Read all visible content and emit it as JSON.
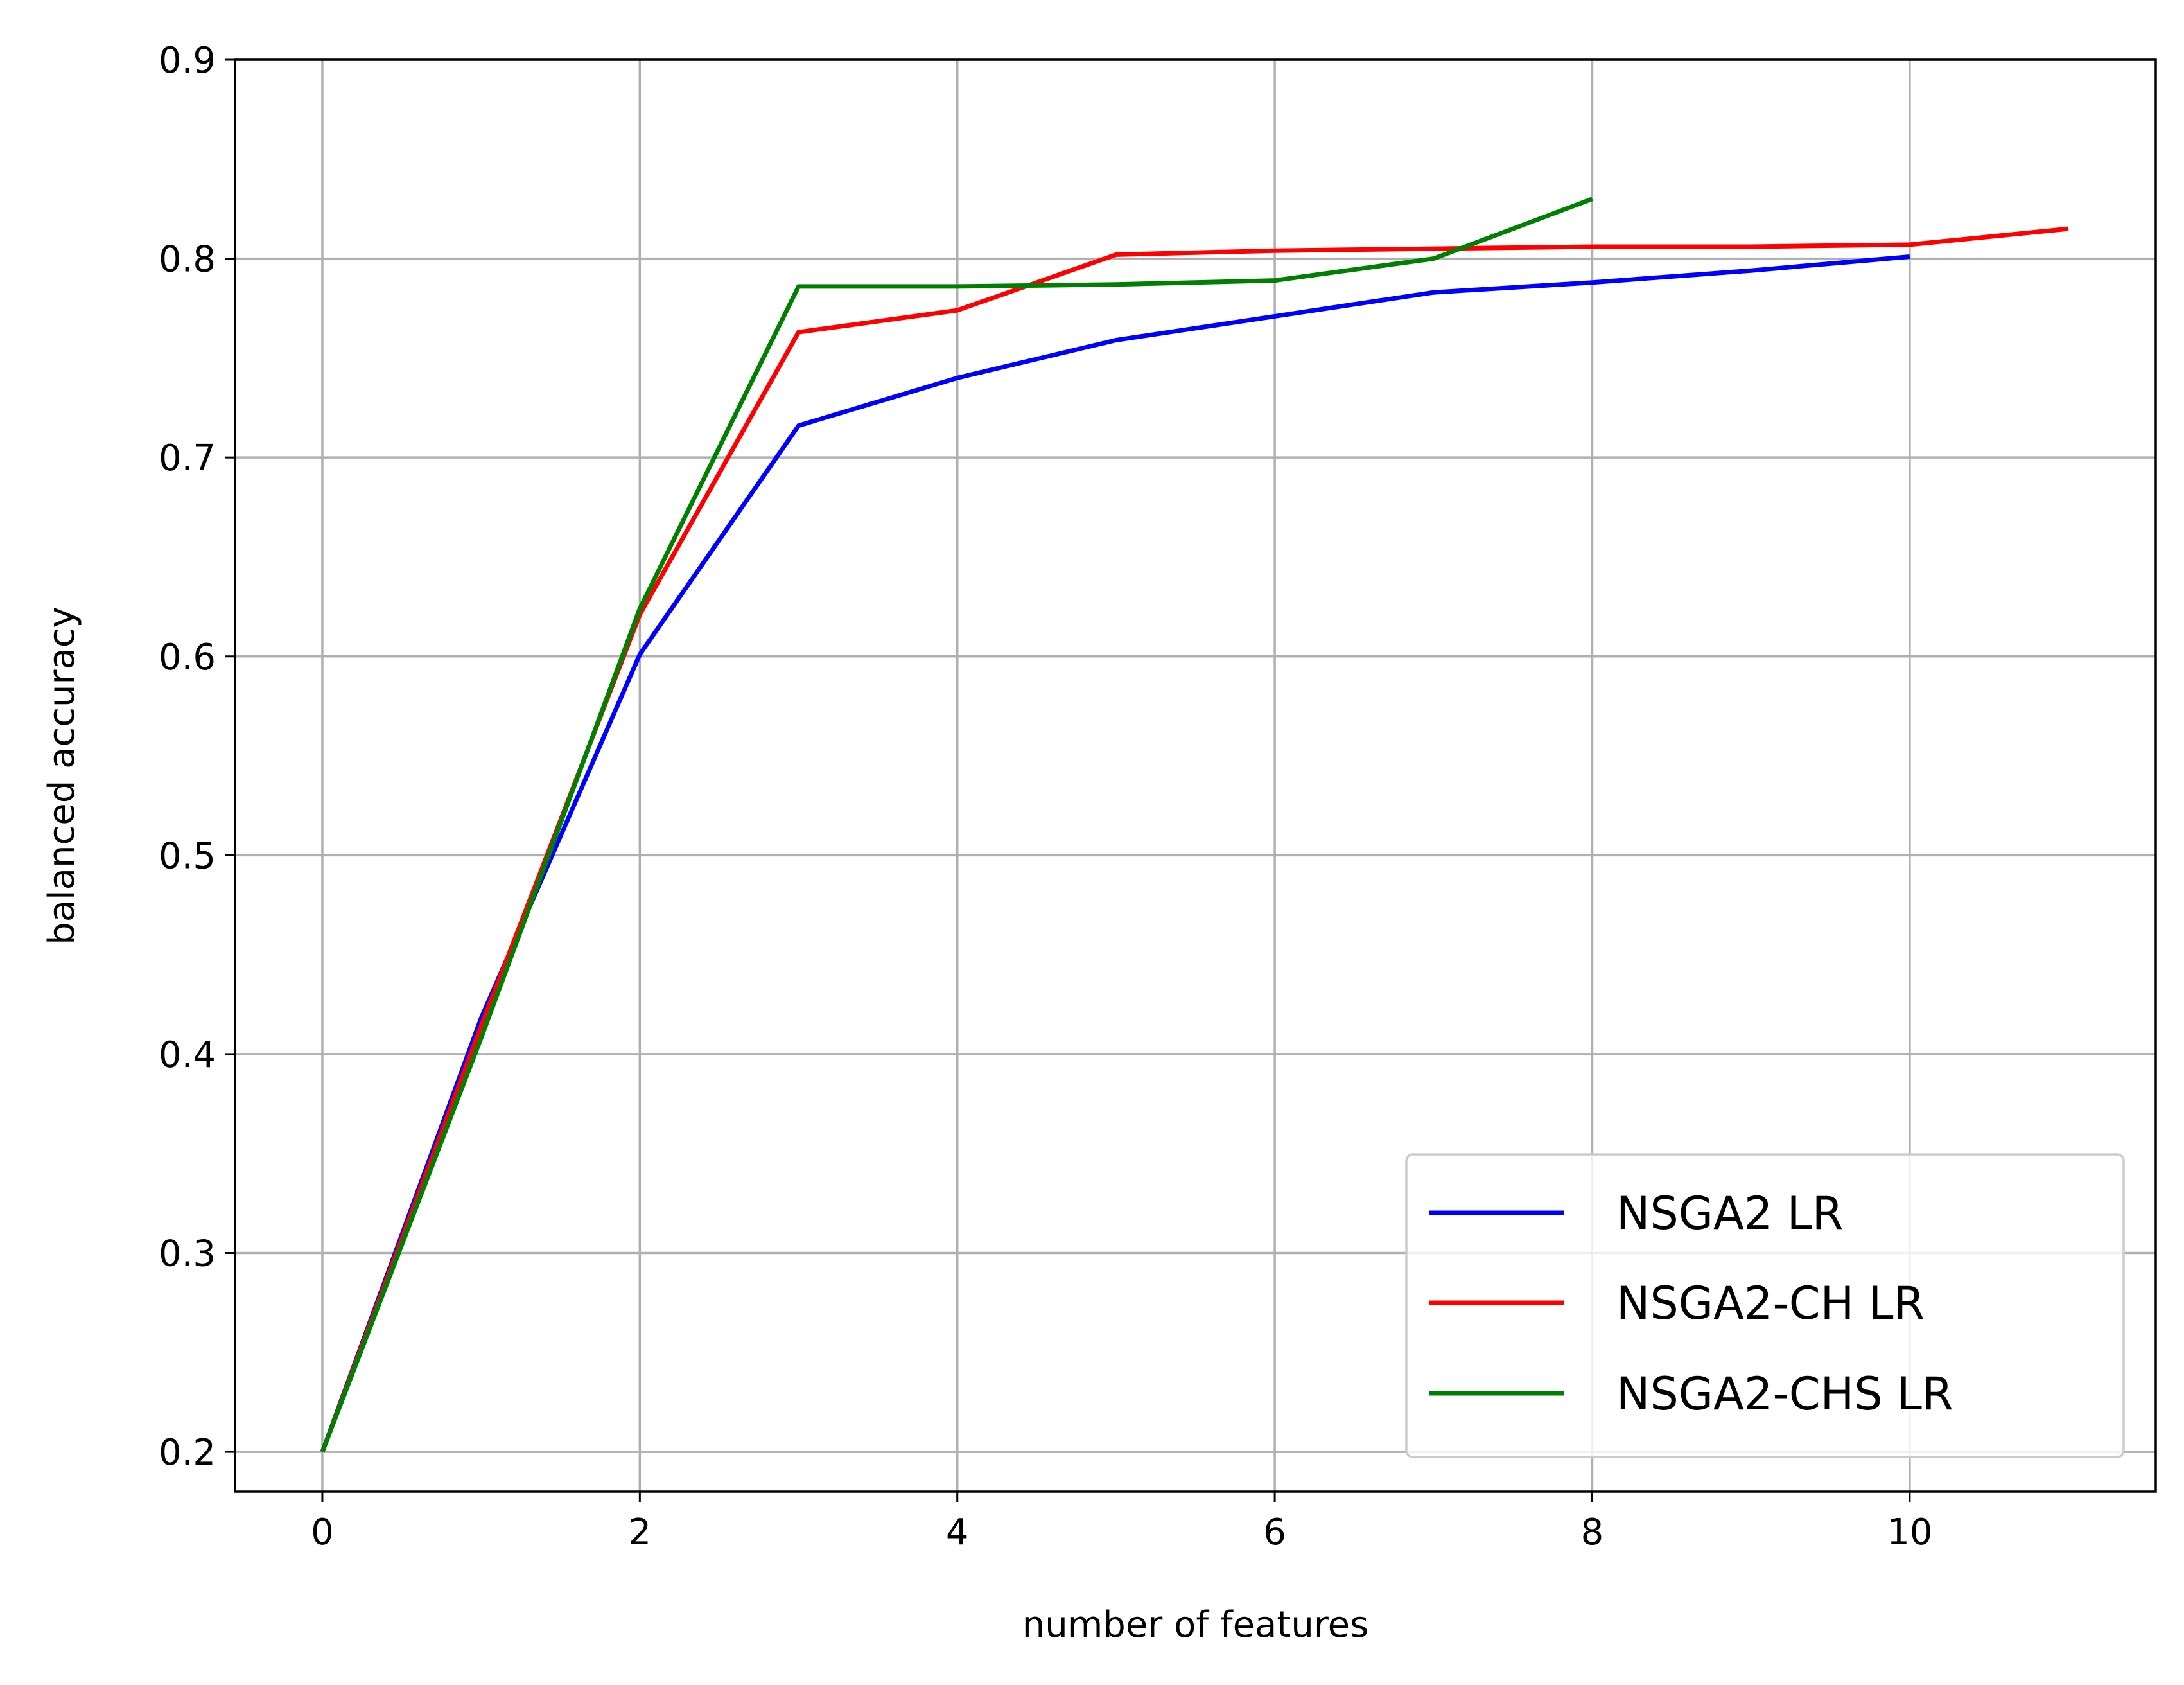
{
  "chart_data": {
    "type": "line",
    "title": "",
    "xlabel": "number of features",
    "ylabel": "balanced accuracy",
    "xlim": [
      -0.55,
      11.55
    ],
    "ylim": [
      0.18,
      0.9
    ],
    "xticks": [
      0,
      2,
      4,
      6,
      8,
      10
    ],
    "xtick_labels": [
      "0",
      "2",
      "4",
      "6",
      "8",
      "10"
    ],
    "yticks": [
      0.2,
      0.3,
      0.4,
      0.5,
      0.6,
      0.7,
      0.8,
      0.9
    ],
    "ytick_labels": [
      "0.2",
      "0.3",
      "0.4",
      "0.5",
      "0.6",
      "0.7",
      "0.8",
      "0.9"
    ],
    "grid": true,
    "legend_position": "bottom-right",
    "series": [
      {
        "name": "NSGA2 LR",
        "color": "#0000ff",
        "x": [
          0,
          1,
          2,
          3,
          4,
          5,
          6,
          7,
          8,
          9,
          10
        ],
        "y": [
          0.2,
          0.418,
          0.601,
          0.716,
          0.74,
          0.759,
          0.771,
          0.783,
          0.788,
          0.794,
          0.801
        ]
      },
      {
        "name": "NSGA2-CH LR",
        "color": "#ff0000",
        "x": [
          0,
          1,
          2,
          3,
          4,
          5,
          6,
          7,
          8,
          9,
          10,
          11
        ],
        "y": [
          0.2,
          0.414,
          0.621,
          0.763,
          0.774,
          0.802,
          0.804,
          0.805,
          0.806,
          0.806,
          0.807,
          0.815
        ]
      },
      {
        "name": "NSGA2-CHS LR",
        "color": "#008000",
        "x": [
          0,
          1,
          2,
          3,
          4,
          5,
          6,
          7,
          8
        ],
        "y": [
          0.2,
          0.408,
          0.624,
          0.786,
          0.786,
          0.787,
          0.789,
          0.8,
          0.83
        ]
      }
    ]
  }
}
